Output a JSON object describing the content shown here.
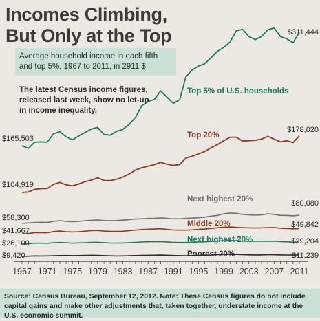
{
  "header": {
    "title_line1": "Incomes Climbing,",
    "title_line2": "But Only at the Top",
    "subtitle": "Average household income in each fifth and top 5%, 1967 to 2011, in 2911 $",
    "note": "The latest Census income figures, released last week, show no let-up in income inequality."
  },
  "footer": {
    "source": "Source: Census Bureau, September 12, 2012. Note: These Census figures do not include capital gains and make other adjustments that, taken together, understate income at the U.S. economic summit."
  },
  "colors": {
    "top5": "#1b7a5e",
    "top20": "#8b3a24",
    "next_highest_1": "#6f6f6f",
    "middle": "#8b3a24",
    "next_highest_2": "#1b7a5e",
    "poorest": "#2a2a2a",
    "background": "#ebe9e2",
    "box": "#cbe1d6"
  },
  "chart_data": {
    "type": "line",
    "x": [
      1967,
      1968,
      1969,
      1970,
      1971,
      1972,
      1973,
      1974,
      1975,
      1976,
      1977,
      1978,
      1979,
      1980,
      1981,
      1982,
      1983,
      1984,
      1985,
      1986,
      1987,
      1988,
      1989,
      1990,
      1991,
      1992,
      1993,
      1994,
      1995,
      1996,
      1997,
      1998,
      1999,
      2000,
      2001,
      2002,
      2003,
      2004,
      2005,
      2006,
      2007,
      2008,
      2009,
      2010,
      2011
    ],
    "x_ticks": [
      "1967",
      "1971",
      "1975",
      "1979",
      "1983",
      "1987",
      "1991",
      "1995",
      "1999",
      "2003",
      "2007",
      "2011"
    ],
    "x_tick_values": [
      1967,
      1971,
      1975,
      1979,
      1983,
      1987,
      1991,
      1995,
      1999,
      2003,
      2007,
      2011
    ],
    "ylim": [
      0,
      330000
    ],
    "grid": false,
    "series": [
      {
        "key": "top5",
        "name": "Top 5% of U.S. households",
        "start_label": "$165,503",
        "end_label": "$311,444",
        "values": [
          165503,
          162000,
          170000,
          170500,
          170000,
          181000,
          183500,
          177000,
          173000,
          178000,
          182500,
          187000,
          189000,
          180000,
          179000,
          184000,
          186500,
          193000,
          202000,
          217000,
          222500,
          225000,
          236000,
          228000,
          220000,
          224500,
          254000,
          263000,
          268000,
          271000,
          279000,
          287000,
          292000,
          299000,
          315000,
          318000,
          306000,
          302000,
          306000,
          317000,
          321000,
          306000,
          303000,
          298000,
          311444
        ]
      },
      {
        "key": "top20",
        "name": "Top 20%",
        "start_label": "$104,919",
        "end_label": "$178,020",
        "values": [
          104919,
          105500,
          109000,
          109800,
          110000,
          115500,
          118000,
          114800,
          113500,
          116000,
          119000,
          121000,
          124000,
          120500,
          120300,
          122000,
          125000,
          129000,
          134000,
          137000,
          139000,
          141000,
          144000,
          141500,
          140000,
          141000,
          149500,
          152000,
          155000,
          158000,
          163000,
          167000,
          172000,
          176500,
          176500,
          171500,
          172000,
          172500,
          174000,
          177500,
          174000,
          170500,
          172000,
          169500,
          178020
        ]
      },
      {
        "key": "next_highest_1",
        "name": "Next highest 20%",
        "start_label": "$58,300",
        "end_label": "$80,080",
        "values": [
          58300,
          59500,
          61000,
          61300,
          61000,
          64000,
          65500,
          64000,
          63000,
          64000,
          65500,
          66500,
          67500,
          66000,
          65500,
          66000,
          67000,
          68500,
          70000,
          70500,
          71500,
          72000,
          73000,
          71500,
          70500,
          70500,
          71500,
          72500,
          73500,
          75000,
          77500,
          79500,
          81500,
          82500,
          82000,
          81000,
          80500,
          80000,
          80500,
          81500,
          81000,
          79500,
          79500,
          78500,
          80080
        ]
      },
      {
        "key": "middle",
        "name": "Middle 20%",
        "start_label": "$41,667",
        "end_label": "$49,842",
        "values": [
          41667,
          42000,
          43500,
          43400,
          43200,
          45200,
          46000,
          45000,
          44500,
          45000,
          45800,
          46800,
          47000,
          46000,
          45500,
          45400,
          45800,
          46800,
          47500,
          48500,
          49000,
          49300,
          49800,
          48800,
          47800,
          47500,
          47500,
          48000,
          48800,
          49300,
          50300,
          51300,
          52200,
          52600,
          52000,
          51500,
          51200,
          51000,
          51200,
          51500,
          51800,
          50600,
          50200,
          49700,
          49842
        ]
      },
      {
        "key": "next_highest_2",
        "name": "Next highest 20%",
        "start_label": "$26,100",
        "end_label": "$29,204",
        "values": [
          26100,
          26600,
          27500,
          27400,
          27200,
          28200,
          28500,
          28200,
          27500,
          27900,
          28200,
          28700,
          28800,
          28300,
          27800,
          27600,
          27800,
          28200,
          28700,
          29200,
          29500,
          29600,
          29800,
          29300,
          28700,
          28500,
          28500,
          28700,
          29200,
          29500,
          30000,
          30600,
          31300,
          31500,
          31200,
          30600,
          30400,
          30200,
          30200,
          30400,
          30500,
          29700,
          29400,
          29000,
          29204
        ]
      },
      {
        "key": "poorest",
        "name": "Poorest 20%",
        "start_label": "$9,420",
        "end_label": "$11,239",
        "values": [
          9420,
          9700,
          10100,
          10000,
          10100,
          10300,
          10500,
          10600,
          10400,
          10500,
          10700,
          10900,
          10800,
          10400,
          10200,
          10000,
          10100,
          10300,
          10500,
          10700,
          10900,
          11000,
          11200,
          10900,
          10600,
          10400,
          10300,
          10500,
          10900,
          11100,
          11300,
          11700,
          12100,
          12300,
          12000,
          11700,
          11500,
          11400,
          11400,
          11600,
          11600,
          11400,
          11300,
          11200,
          11239
        ]
      }
    ]
  }
}
